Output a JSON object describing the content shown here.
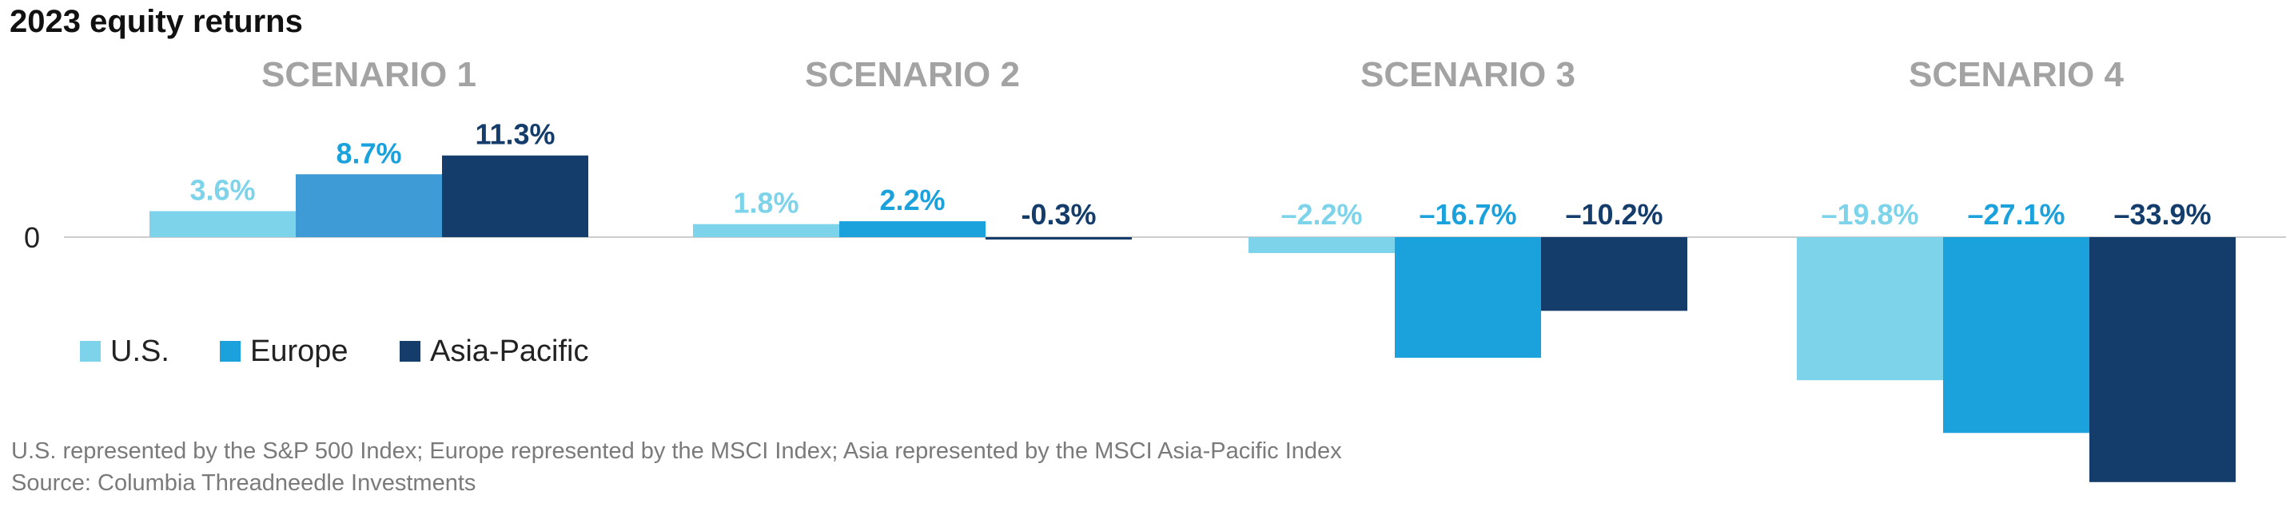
{
  "chart_data": {
    "type": "bar",
    "title": "2023 equity returns",
    "zero_label": "0",
    "categories": [
      "SCENARIO 1",
      "SCENARIO 2",
      "SCENARIO 3",
      "SCENARIO 4"
    ],
    "series": [
      {
        "name": "U.S.",
        "color": "#7dd3ea",
        "values": [
          3.6,
          1.8,
          -2.2,
          -19.8
        ],
        "labels": [
          "3.6%",
          "1.8%",
          "–2.2%",
          "–19.8%"
        ]
      },
      {
        "name": "Europe",
        "color": "#1ba1dc",
        "values": [
          8.7,
          2.2,
          -16.7,
          -27.1
        ],
        "labels": [
          "8.7%",
          "2.2%",
          "–16.7%",
          "–27.1%"
        ]
      },
      {
        "name": "Asia-Pacific",
        "color": "#143d6b",
        "values": [
          11.3,
          -0.3,
          -10.2,
          -33.9
        ],
        "labels": [
          "11.3%",
          "-0.3%",
          "–10.2%",
          "–33.9%"
        ]
      }
    ],
    "label_colors": [
      "#7dd3ea",
      "#1ba1dc",
      "#143d6b"
    ],
    "scenario1_europe_bar_color": "#3f9bd5",
    "ylim": [
      -34,
      12
    ],
    "grid": false,
    "legend_position": "bottom-left",
    "notes": [
      "U.S. represented by the S&P 500 Index; Europe represented by the MSCI Index; Asia represented by the MSCI Asia-Pacific Index",
      "Source: Columbia Threadneedle Investments"
    ]
  }
}
